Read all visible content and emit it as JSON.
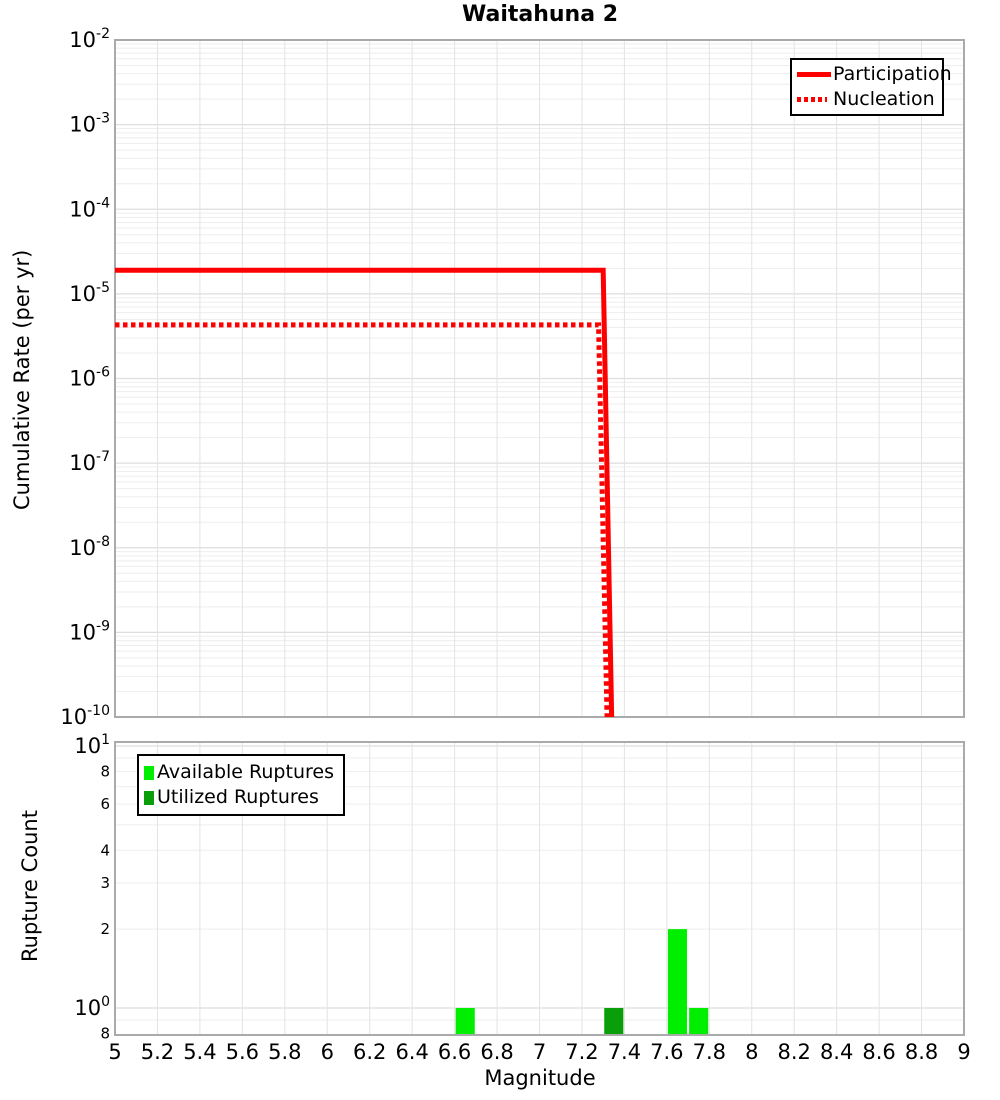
{
  "title": "Waitahuna 2",
  "colors": {
    "participation_red": "#ff0000",
    "nucleation_red": "#ff0000",
    "available_green": "#00ee00",
    "utilized_green": "#0a9e0a",
    "grid_major": "#dedede",
    "grid_minor": "#eeeeee",
    "grid_vertical": "#e3e3e3",
    "panel_border": "#aaaaaa",
    "legend_border": "#000000"
  },
  "chart_data": [
    {
      "type": "line",
      "panel": "top",
      "title": "Waitahuna 2",
      "ylabel": "Cumulative Rate (per yr)",
      "xlabel": "Magnitude",
      "y_scale": "log",
      "ylim": [
        1e-10,
        0.01
      ],
      "xlim": [
        5,
        9
      ],
      "grid": true,
      "y_tick_exponents": [
        -2,
        -3,
        -4,
        -5,
        -6,
        -7,
        -8,
        -9,
        -10
      ],
      "legend": {
        "position": "top-right",
        "entries": [
          {
            "label": "Participation",
            "style": "solid",
            "color": "#ff0000"
          },
          {
            "label": "Nucleation",
            "style": "dotted",
            "color": "#ff0000"
          }
        ]
      },
      "series": [
        {
          "name": "Nucleation",
          "color": "#ff0000",
          "style": "dotted",
          "line_width": 5,
          "points": [
            [
              5,
              4.3e-06
            ],
            [
              7.29,
              4.3e-06
            ],
            [
              7.33,
              1e-10
            ]
          ]
        },
        {
          "name": "Participation",
          "color": "#ff0000",
          "style": "solid",
          "line_width": 5,
          "points": [
            [
              5,
              1.9e-05
            ],
            [
              7.3,
              1.9e-05
            ],
            [
              7.34,
              1e-10
            ]
          ]
        }
      ]
    },
    {
      "type": "bar",
      "panel": "bottom",
      "ylabel": "Rupture Count",
      "xlabel": "Magnitude",
      "y_scale": "log",
      "ylim": [
        0.8,
        10.4
      ],
      "xlim": [
        5,
        9
      ],
      "grid": true,
      "bin_width": 0.1,
      "y_major_ticks": [
        {
          "base": "10",
          "exp": "1",
          "value": 10
        },
        {
          "base": "10",
          "exp": "0",
          "value": 1
        }
      ],
      "y_minor_ticks": [
        {
          "label": "8",
          "value": 8
        },
        {
          "label": "6",
          "value": 6
        },
        {
          "label": "4",
          "value": 4
        },
        {
          "label": "3",
          "value": 3
        },
        {
          "label": "2",
          "value": 2
        },
        {
          "label": "8",
          "value": 0.8
        }
      ],
      "x_ticks": [
        {
          "label": "5",
          "value": 5
        },
        {
          "label": "5.2",
          "value": 5.2
        },
        {
          "label": "5.4",
          "value": 5.4
        },
        {
          "label": "5.6",
          "value": 5.6
        },
        {
          "label": "5.8",
          "value": 5.8
        },
        {
          "label": "6",
          "value": 6
        },
        {
          "label": "6.2",
          "value": 6.2
        },
        {
          "label": "6.4",
          "value": 6.4
        },
        {
          "label": "6.6",
          "value": 6.6
        },
        {
          "label": "6.8",
          "value": 6.8
        },
        {
          "label": "7",
          "value": 7
        },
        {
          "label": "7.2",
          "value": 7.2
        },
        {
          "label": "7.4",
          "value": 7.4
        },
        {
          "label": "7.6",
          "value": 7.6
        },
        {
          "label": "7.8",
          "value": 7.8
        },
        {
          "label": "8",
          "value": 8
        },
        {
          "label": "8.2",
          "value": 8.2
        },
        {
          "label": "8.4",
          "value": 8.4
        },
        {
          "label": "8.6",
          "value": 8.6
        },
        {
          "label": "8.8",
          "value": 8.8
        },
        {
          "label": "9",
          "value": 9
        }
      ],
      "legend": {
        "position": "top-left",
        "entries": [
          {
            "label": "Available Ruptures",
            "color": "#00ee00"
          },
          {
            "label": "Utilized Ruptures",
            "color": "#0a9e0a"
          }
        ]
      },
      "series": [
        {
          "name": "Available Ruptures",
          "color": "#00ee00",
          "bars": [
            {
              "magnitude": 6.65,
              "count": 1
            },
            {
              "magnitude": 7.65,
              "count": 2
            },
            {
              "magnitude": 7.75,
              "count": 1
            }
          ]
        },
        {
          "name": "Utilized Ruptures",
          "color": "#0a9e0a",
          "bars": [
            {
              "magnitude": 7.35,
              "count": 1
            }
          ]
        }
      ]
    }
  ]
}
